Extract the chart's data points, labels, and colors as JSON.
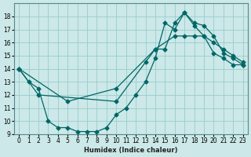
{
  "xlabel": "Humidex (Indice chaleur)",
  "bg_color": "#cce8e8",
  "grid_color": "#99cccc",
  "line_color": "#006666",
  "xlim": [
    -0.5,
    23.5
  ],
  "ylim": [
    9,
    19
  ],
  "yticks": [
    9,
    10,
    11,
    12,
    13,
    14,
    15,
    16,
    17,
    18
  ],
  "xticks": [
    0,
    1,
    2,
    3,
    4,
    5,
    6,
    7,
    8,
    9,
    10,
    11,
    12,
    13,
    14,
    15,
    16,
    17,
    18,
    19,
    20,
    21,
    22,
    23
  ],
  "series1_x": [
    0,
    1,
    2,
    3,
    4,
    5,
    6,
    7,
    8,
    9,
    10,
    11,
    12,
    13,
    14,
    15,
    16,
    17,
    18,
    19,
    20,
    21,
    22,
    23
  ],
  "series1_y": [
    14,
    13,
    12.5,
    10.0,
    9.5,
    9.5,
    9.2,
    9.2,
    9.2,
    9.5,
    10.5,
    11.0,
    12.0,
    13.0,
    14.8,
    17.5,
    17.0,
    18.3,
    17.3,
    16.5,
    15.2,
    14.8,
    14.3,
    14.3
  ],
  "series2_x": [
    0,
    2,
    10,
    13,
    14,
    15,
    16,
    17,
    18,
    19,
    20,
    21,
    22,
    23
  ],
  "series2_y": [
    14,
    12.0,
    11.5,
    14.5,
    15.5,
    15.5,
    17.5,
    18.3,
    17.5,
    17.3,
    16.5,
    15.2,
    14.8,
    14.3
  ],
  "series3_x": [
    0,
    5,
    10,
    14,
    16,
    17,
    18,
    19,
    20,
    21,
    22,
    23
  ],
  "series3_y": [
    14,
    11.5,
    12.5,
    15.5,
    16.5,
    16.5,
    16.5,
    16.5,
    16.0,
    15.5,
    15.0,
    14.5
  ]
}
